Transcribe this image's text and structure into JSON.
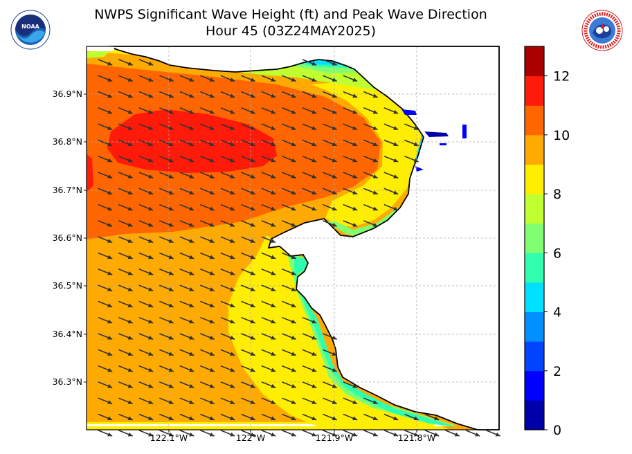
{
  "title_line1": "NWPS Significant Wave Height (ft) and Peak Wave Direction",
  "title_line2": "Hour 45 (03Z24MAY2025)",
  "logos": {
    "left": {
      "icon": "noaa-logo-icon",
      "text": "NOAA"
    },
    "right": {
      "icon": "nws-logo-icon",
      "text": "NATIONAL WEATHER SERVICE"
    }
  },
  "map": {
    "lon_range": [
      -122.2,
      -121.7
    ],
    "lat_range": [
      36.2,
      37.0
    ],
    "lon_ticks": [
      "122.1°W",
      "122°W",
      "121.9°W",
      "121.8°W"
    ],
    "lat_ticks": [
      "36.9°N",
      "36.8°N",
      "36.7°N",
      "36.6°N",
      "36.5°N",
      "36.4°N",
      "36.3°N"
    ],
    "grid": true,
    "peak_wave_direction": "from northwest toward southeast"
  },
  "colorbar": {
    "ticks": [
      "0",
      "2",
      "4",
      "6",
      "8",
      "10",
      "12"
    ],
    "levels": [
      {
        "from": 0,
        "to": 1,
        "color": "#0000aa"
      },
      {
        "from": 1,
        "to": 2,
        "color": "#0000ff"
      },
      {
        "from": 2,
        "to": 3,
        "color": "#0044ff"
      },
      {
        "from": 3,
        "to": 4,
        "color": "#0090ff"
      },
      {
        "from": 4,
        "to": 5,
        "color": "#00e0ff"
      },
      {
        "from": 5,
        "to": 6,
        "color": "#30ffb0"
      },
      {
        "from": 6,
        "to": 7,
        "color": "#80ff70"
      },
      {
        "from": 7,
        "to": 8,
        "color": "#c0ff30"
      },
      {
        "from": 8,
        "to": 9,
        "color": "#ffee00"
      },
      {
        "from": 9,
        "to": 10,
        "color": "#ffaa00"
      },
      {
        "from": 10,
        "to": 11,
        "color": "#ff6600"
      },
      {
        "from": 11,
        "to": 12,
        "color": "#ff1a0a"
      },
      {
        "from": 12,
        "to": 13,
        "color": "#aa0000"
      }
    ]
  }
}
